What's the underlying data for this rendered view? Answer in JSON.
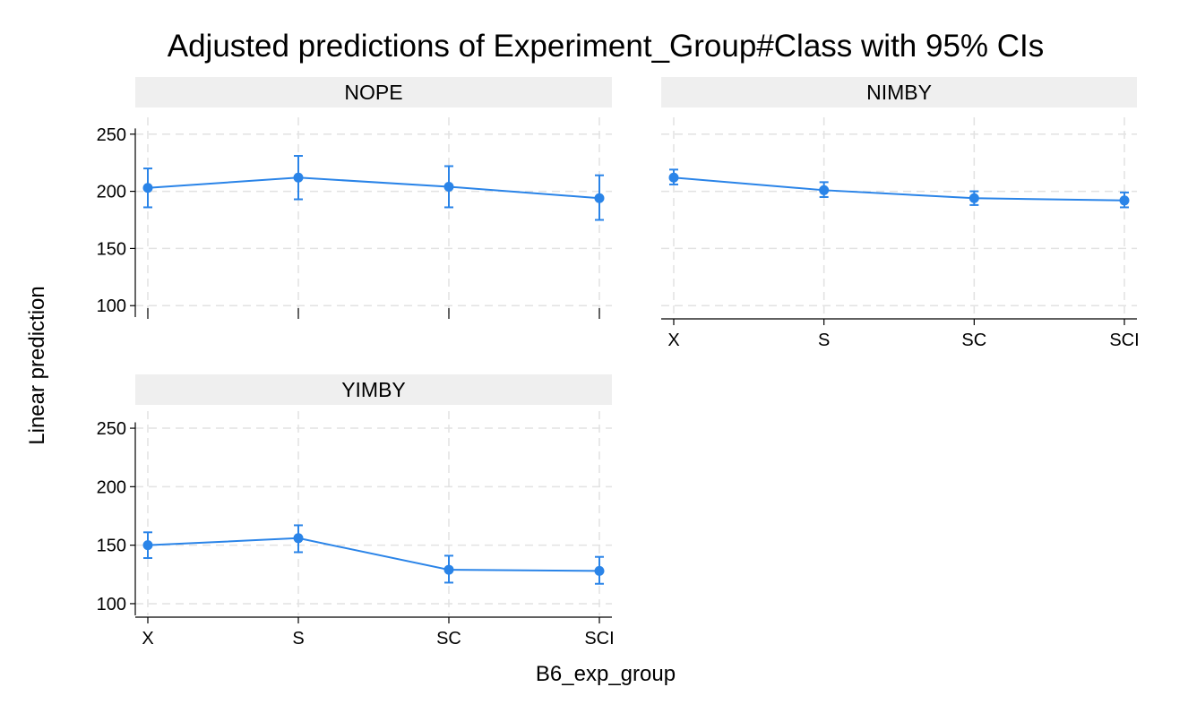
{
  "chart_data": {
    "type": "line",
    "title": "Adjusted predictions of Experiment_Group#Class with 95% CIs",
    "xlabel": "B6_exp_group",
    "ylabel": "Linear prediction",
    "categories": [
      "X",
      "S",
      "SC",
      "SCI"
    ],
    "ylim": [
      90,
      260
    ],
    "yticks": [
      100,
      150,
      200,
      250
    ],
    "grid": true,
    "error_bars": "95% CI",
    "series_color": "#2a84e8",
    "panels": [
      {
        "label": "NOPE",
        "values": [
          203,
          212,
          204,
          194
        ],
        "ci_low": [
          186,
          193,
          186,
          175
        ],
        "ci_high": [
          220,
          231,
          222,
          214
        ]
      },
      {
        "label": "NIMBY",
        "values": [
          212,
          201,
          194,
          192
        ],
        "ci_low": [
          206,
          195,
          188,
          186
        ],
        "ci_high": [
          219,
          208,
          200,
          199
        ]
      },
      {
        "label": "YIMBY",
        "values": [
          150,
          156,
          129,
          128
        ],
        "ci_low": [
          139,
          144,
          118,
          117
        ],
        "ci_high": [
          161,
          167,
          141,
          140
        ]
      }
    ]
  }
}
